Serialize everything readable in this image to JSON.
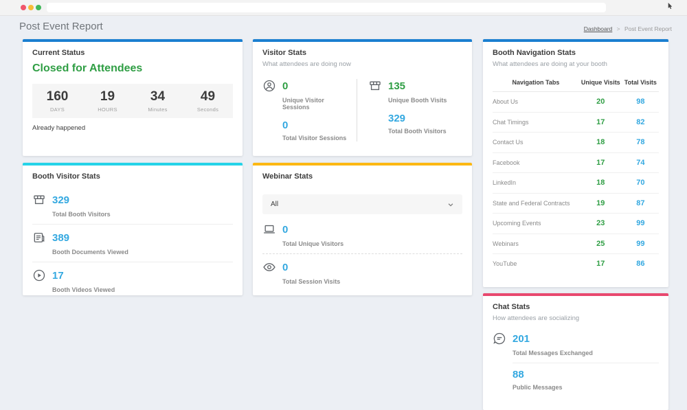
{
  "browser": {
    "url": "",
    "traffic_lights": [
      "red",
      "yellow",
      "green"
    ]
  },
  "header": {
    "title": "Post Event Report",
    "breadcrumb": {
      "home": "Dashboard",
      "separator": ">",
      "current": "Post Event Report"
    }
  },
  "colors": {
    "accent_blue": "#1b7fd0",
    "accent_cyan": "#25d3e8",
    "accent_amber": "#fcb813",
    "accent_pink": "#e8486e",
    "number_green": "#2f9e44",
    "number_blue": "#33a8e0",
    "page_background": "#eceff4"
  },
  "cards": {
    "current_status": {
      "title": "Current Status",
      "status": "Closed for Attendees",
      "countdown": [
        {
          "value": "160",
          "label": "DAYS"
        },
        {
          "value": "19",
          "label": "HOURS"
        },
        {
          "value": "34",
          "label": "Minutes"
        },
        {
          "value": "49",
          "label": "Seconds"
        }
      ],
      "note": "Already happened"
    },
    "visitor_stats": {
      "title": "Visitor Stats",
      "subtitle": "What attendees are doing now",
      "left": {
        "icon": "person-circle-icon",
        "stats": [
          {
            "value": "0",
            "label": "Unique Visitor Sessions",
            "color": "green"
          },
          {
            "value": "0",
            "label": "Total Visitor Sessions",
            "color": "blue"
          }
        ]
      },
      "right": {
        "icon": "booth-icon",
        "stats": [
          {
            "value": "135",
            "label": "Unique Booth Visits",
            "color": "green"
          },
          {
            "value": "329",
            "label": "Total Booth Visitors",
            "color": "blue"
          }
        ]
      }
    },
    "booth_nav": {
      "title": "Booth Navigation Stats",
      "subtitle": "What attendees are doing at your booth",
      "columns": [
        "Navigation Tabs",
        "Unique Visits",
        "Total Visits"
      ],
      "rows": [
        {
          "label": "About Us",
          "unique": "20",
          "total": "98"
        },
        {
          "label": "Chat Timings",
          "unique": "17",
          "total": "82"
        },
        {
          "label": "Contact Us",
          "unique": "18",
          "total": "78"
        },
        {
          "label": "Facebook",
          "unique": "17",
          "total": "74"
        },
        {
          "label": "LinkedIn",
          "unique": "18",
          "total": "70"
        },
        {
          "label": "State and Federal Contracts",
          "unique": "19",
          "total": "87"
        },
        {
          "label": "Upcoming Events",
          "unique": "23",
          "total": "99"
        },
        {
          "label": "Webinars",
          "unique": "25",
          "total": "99"
        },
        {
          "label": "YouTube",
          "unique": "17",
          "total": "86"
        }
      ]
    },
    "booth_visitor": {
      "title": "Booth Visitor Stats",
      "stats": [
        {
          "icon": "booth-icon",
          "value": "329",
          "label": "Total Booth Visitors"
        },
        {
          "icon": "document-icon",
          "value": "389",
          "label": "Booth Documents Viewed"
        },
        {
          "icon": "play-circle-icon",
          "value": "17",
          "label": "Booth Videos Viewed"
        }
      ]
    },
    "webinar": {
      "title": "Webinar Stats",
      "filter_selected": "All",
      "stats": [
        {
          "icon": "laptop-icon",
          "value": "0",
          "label": "Total Unique Visitors"
        },
        {
          "icon": "eye-icon",
          "value": "0",
          "label": "Total Session Visits"
        }
      ]
    },
    "chat": {
      "title": "Chat Stats",
      "subtitle": "How attendees are socializing",
      "stats": [
        {
          "icon": "chat-circle-icon",
          "value": "201",
          "label": "Total Messages Exchanged"
        },
        {
          "value": "88",
          "label": "Public Messages"
        }
      ]
    }
  }
}
